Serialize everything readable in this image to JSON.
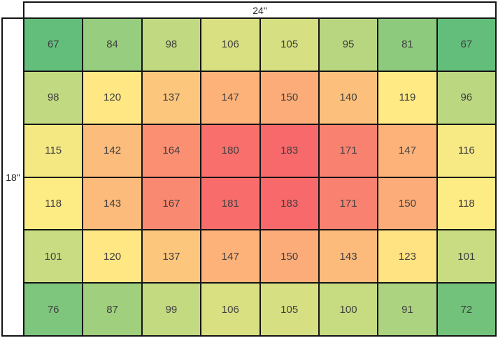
{
  "chart_data": {
    "type": "heatmap",
    "width_label": "24\"",
    "height_label": "18\"",
    "rows": 6,
    "columns": 8,
    "values": [
      [
        67,
        84,
        98,
        106,
        105,
        95,
        81,
        67
      ],
      [
        98,
        120,
        137,
        147,
        150,
        140,
        119,
        96
      ],
      [
        115,
        142,
        164,
        180,
        183,
        171,
        147,
        116
      ],
      [
        118,
        143,
        167,
        181,
        183,
        171,
        150,
        118
      ],
      [
        101,
        120,
        137,
        147,
        150,
        143,
        123,
        101
      ],
      [
        76,
        87,
        99,
        106,
        105,
        100,
        91,
        72
      ]
    ],
    "color_scale": {
      "min": {
        "value": 67,
        "color": "#63BE7B"
      },
      "mid": {
        "value": 118.5,
        "color": "#FFEB84"
      },
      "max": {
        "value": 183,
        "color": "#F8696B"
      }
    },
    "legend": "none",
    "grid_lines": "on"
  }
}
